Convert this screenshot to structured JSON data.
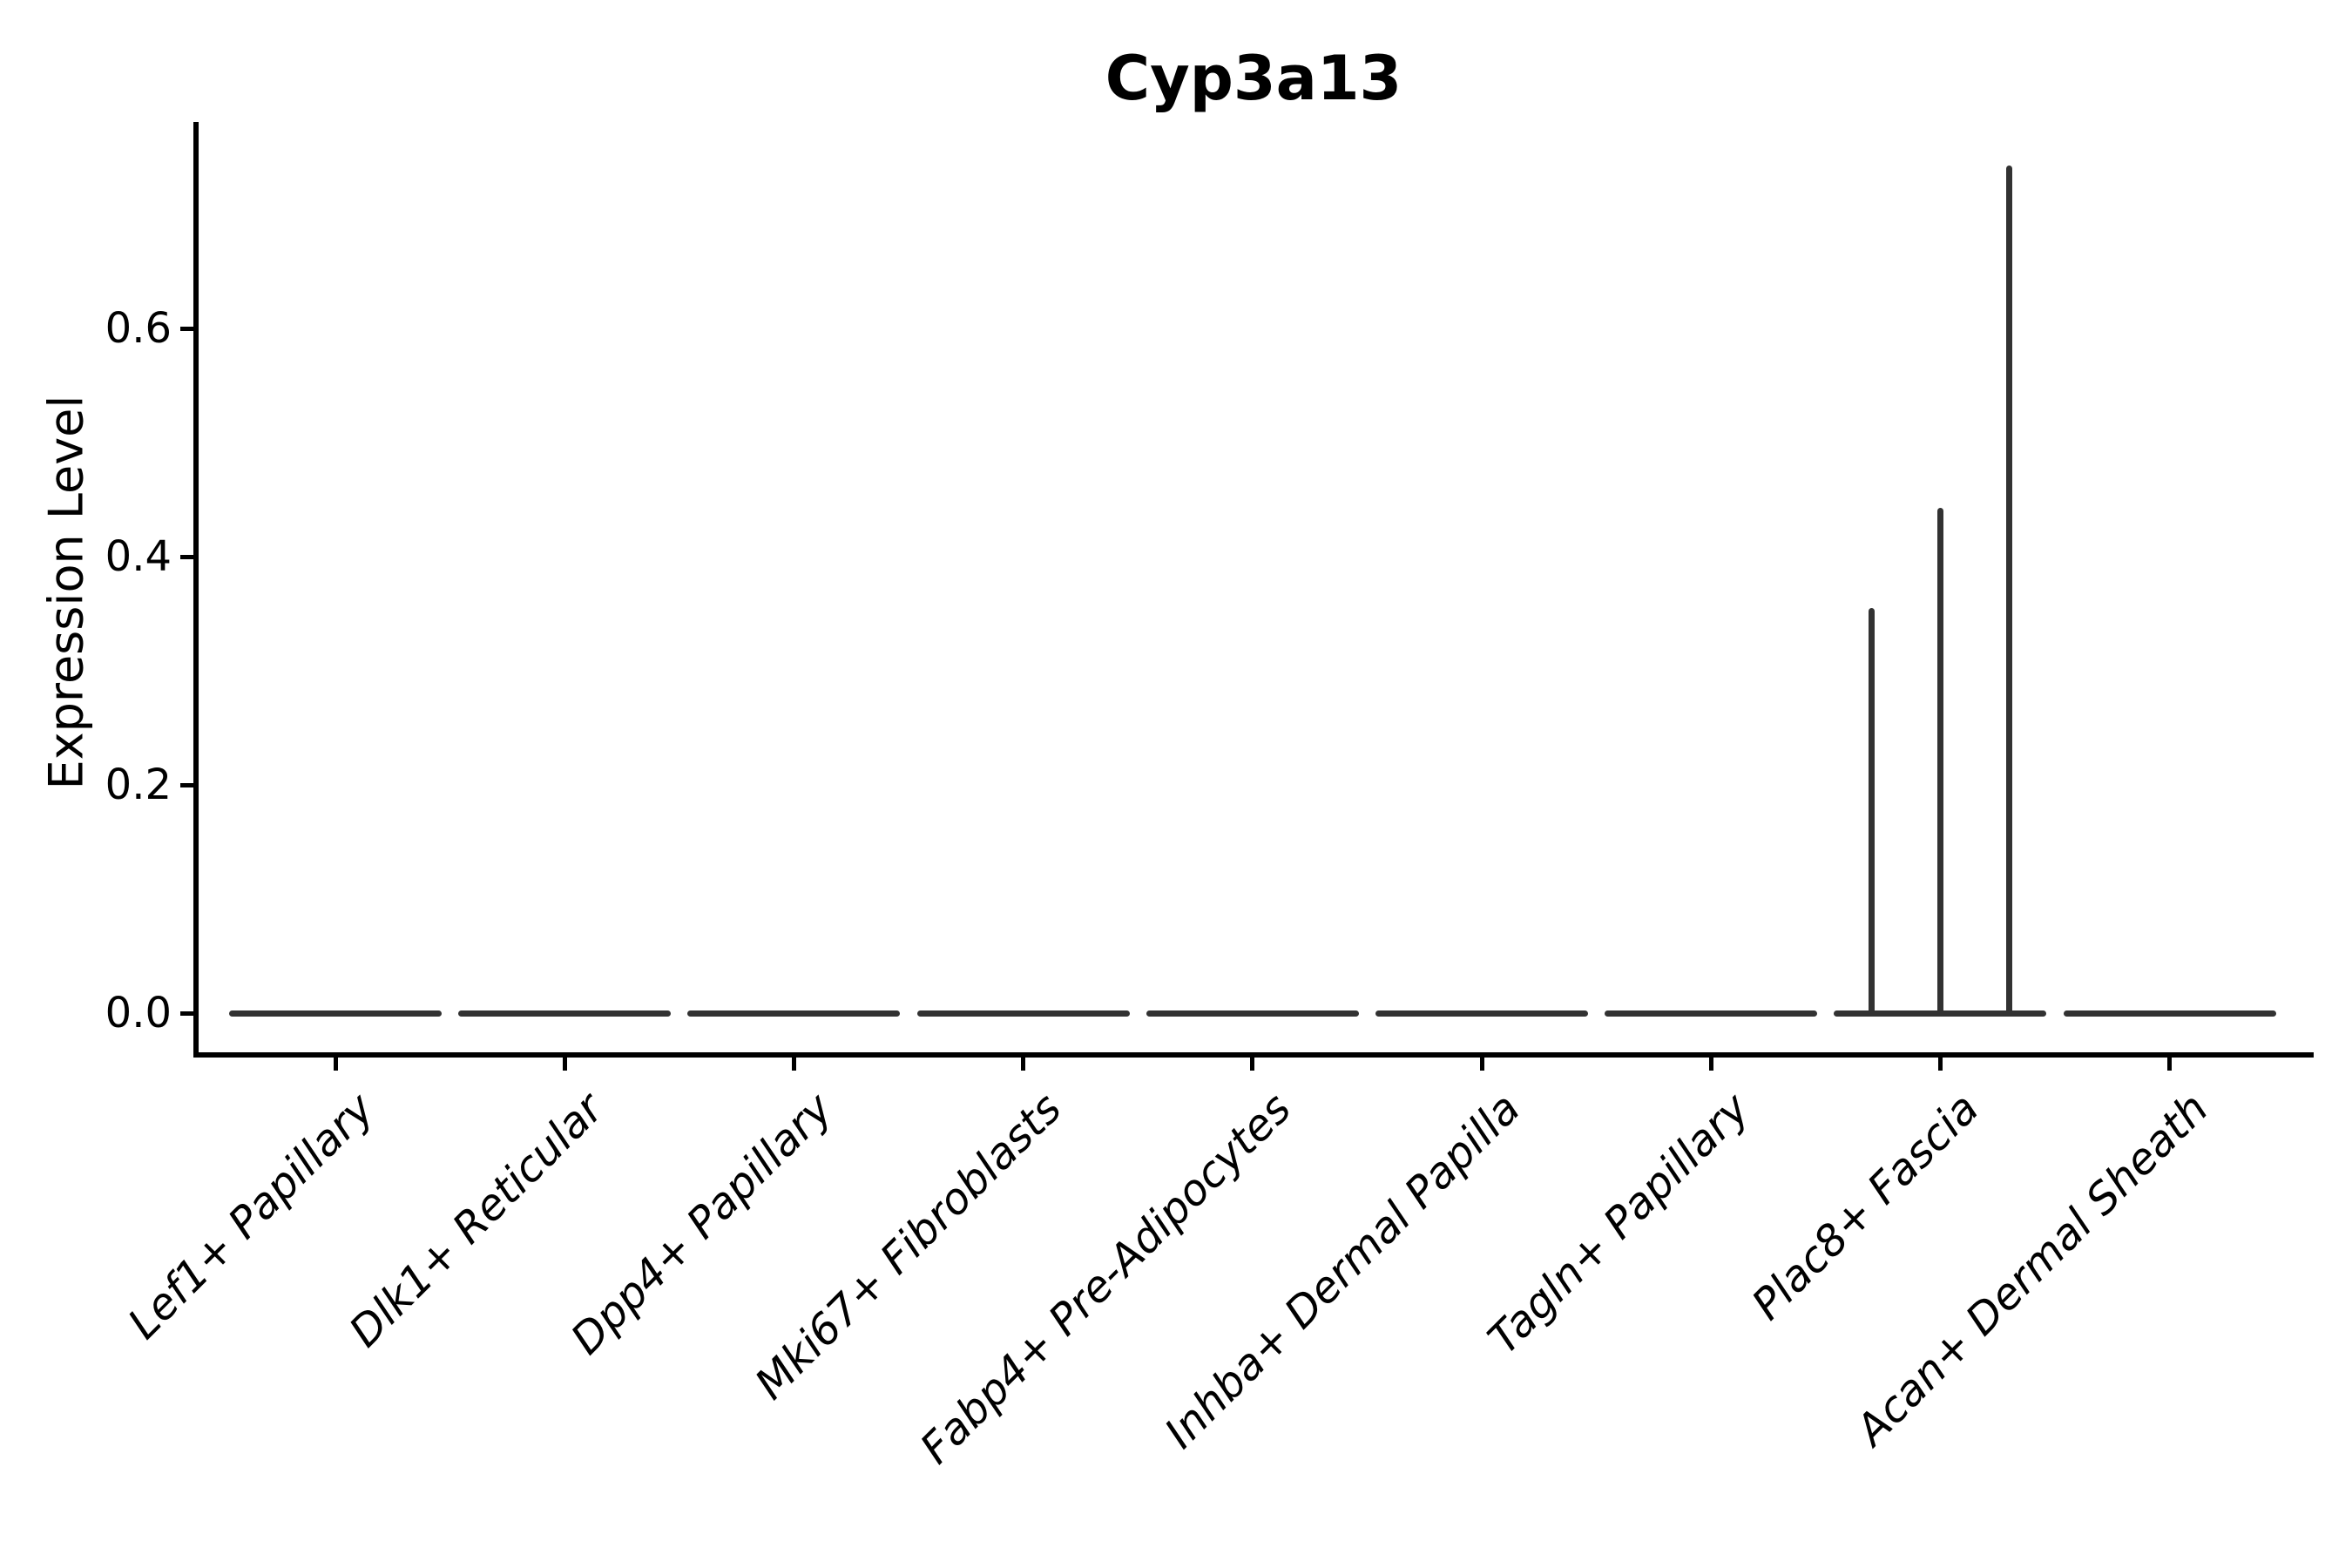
{
  "chart_data": {
    "type": "violin",
    "title": "Cyp3a13",
    "ylabel": "Expression Level",
    "xlabel": "",
    "legend": "none",
    "grid": false,
    "background": "#ffffff",
    "colors": {
      "violin_stroke": "#323232",
      "axis": "#000000",
      "text": "#000000"
    },
    "yticks": [
      "0.0",
      "0.2",
      "0.4",
      "0.6"
    ],
    "ytick_values": [
      0.0,
      0.2,
      0.4,
      0.6
    ],
    "ylim": [
      0,
      0.78
    ],
    "categories": [
      "Lef1+ Papillary",
      "Dlk1+ Reticular",
      "Dpp4+ Papillary",
      "Mki67+ Fibroblasts",
      "Fabp4+ Pre-Adipocytes",
      "Inhba+ Dermal Papilla",
      "Tagln+ Papillary",
      "Plac8+ Fascia",
      "Acan+ Dermal Sheath"
    ],
    "violins": [
      {
        "category": "Lef1+ Papillary",
        "baseline": 0.0,
        "spikes": []
      },
      {
        "category": "Dlk1+ Reticular",
        "baseline": 0.0,
        "spikes": []
      },
      {
        "category": "Dpp4+ Papillary",
        "baseline": 0.0,
        "spikes": []
      },
      {
        "category": "Mki67+ Fibroblasts",
        "baseline": 0.0,
        "spikes": []
      },
      {
        "category": "Fabp4+ Pre-Adipocytes",
        "baseline": 0.0,
        "spikes": []
      },
      {
        "category": "Inhba+ Dermal Papilla",
        "baseline": 0.0,
        "spikes": []
      },
      {
        "category": "Tagln+ Papillary",
        "baseline": 0.0,
        "spikes": []
      },
      {
        "category": "Plac8+ Fascia",
        "baseline": 0.0,
        "spikes": [
          {
            "pos": -0.3,
            "value": 0.355
          },
          {
            "pos": 0.0,
            "value": 0.443
          },
          {
            "pos": 0.3,
            "value": 0.743
          }
        ]
      },
      {
        "category": "Acan+ Dermal Sheath",
        "baseline": 0.0,
        "spikes": []
      }
    ]
  }
}
